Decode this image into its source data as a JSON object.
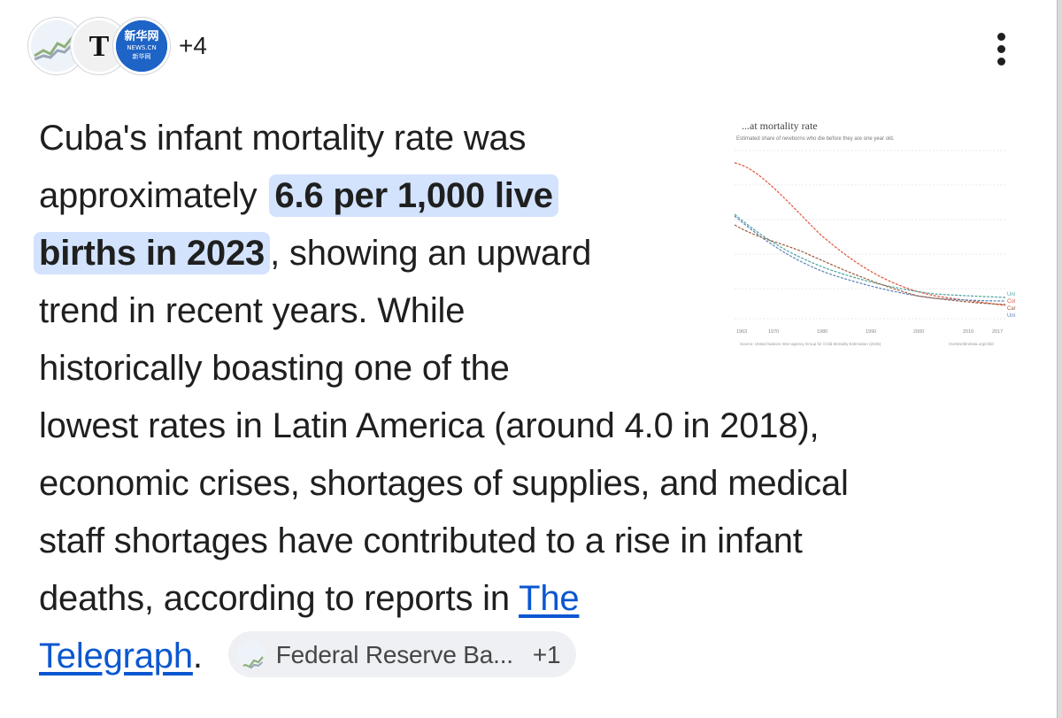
{
  "header": {
    "more_sources": "+4",
    "xinhua_logo_text": "新华网",
    "xinhua_logo_sub": "NEWS.CN",
    "xinhua_logo_tag": "新华网",
    "telegraph_logo_text": "T"
  },
  "answer": {
    "line1": "Cuba's infant mortality rate was",
    "line2_prefix": "approximately",
    "highlight_part1": "6.6 per 1,000 live",
    "highlight_part2": "births in 2023",
    "line3_suffix": ", showing an upward",
    "line4": "trend in recent years. While",
    "line5": "historically boasting one of the",
    "line6": "lowest rates in Latin America (around 4.0 in 2018),",
    "line7": "economic crises, shortages of supplies, and medical",
    "line8": "staff shortages have contributed to a rise in infant",
    "line9_prefix": "deaths, according to reports in",
    "link_part1": "The",
    "link_part2": "Telegraph",
    "period": "."
  },
  "citation_chip": {
    "label": "Federal Reserve Ba...",
    "extra": "+1"
  },
  "thumbnail": {
    "title": "...at mortality rate",
    "subtitle": "Estimated share of newborns who die before they are one year old.",
    "x_ticks": [
      "1963",
      "1970",
      "1980",
      "1990",
      "2000",
      "2010",
      "2017"
    ],
    "source_left": "Source: United Nations Inter-agency Group for Child Mortality Estimation (2025)",
    "source_right": "OurWorldInData.org/child",
    "legend": [
      "Uni",
      "Col",
      "Car",
      "Uni"
    ],
    "colors": {
      "red": "#e0533a",
      "blue": "#5b7fb8",
      "teal": "#4aa3a0",
      "brown": "#9a5a3a"
    }
  },
  "colors": {
    "highlight": "#d3e3fd",
    "link": "#0b57d0",
    "chip_bg": "#eef0f3",
    "text": "#1f1f1f"
  }
}
